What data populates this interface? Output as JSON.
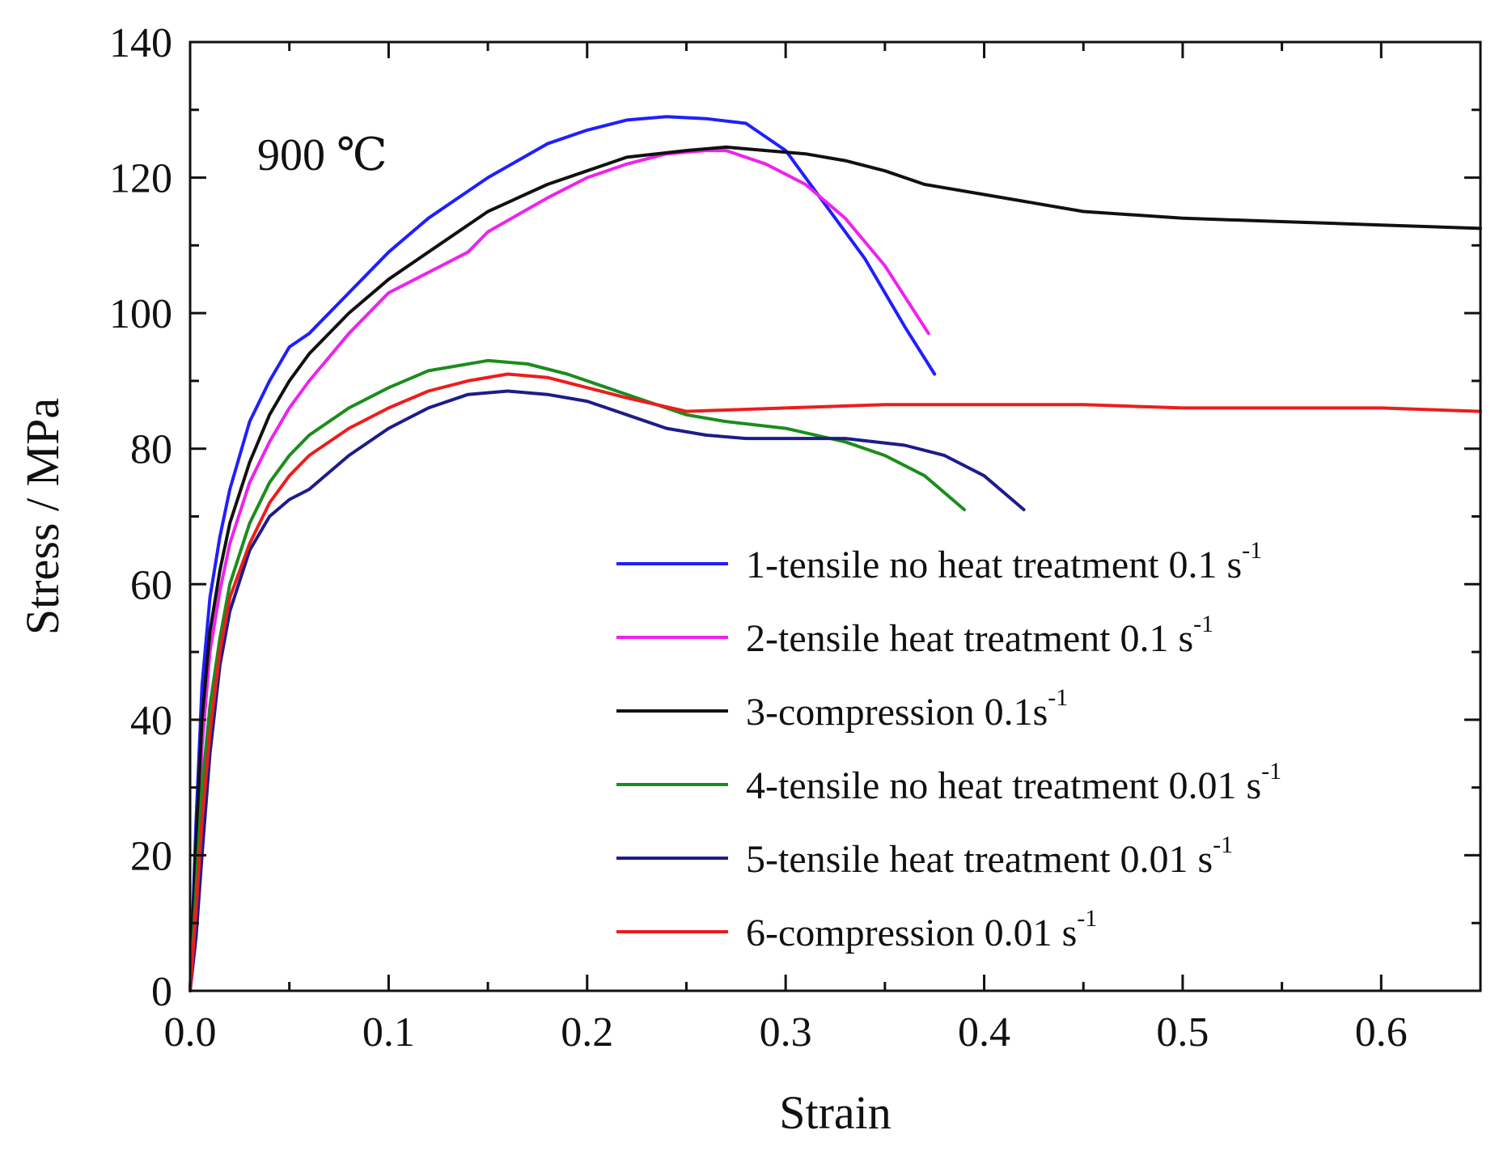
{
  "chart_data": {
    "type": "line",
    "title": "",
    "annotation": "900 ℃",
    "xlabel": "Strain",
    "ylabel": "Stress / MPa",
    "xlim": [
      0.0,
      0.65
    ],
    "ylim": [
      0,
      140
    ],
    "xticks": [
      0.0,
      0.1,
      0.2,
      0.3,
      0.4,
      0.5,
      0.6
    ],
    "xtick_labels": [
      "0.0",
      "0.1",
      "0.2",
      "0.3",
      "0.4",
      "0.5",
      "0.6"
    ],
    "yticks": [
      0,
      20,
      40,
      60,
      80,
      100,
      120,
      140
    ],
    "ytick_labels": [
      "0",
      "20",
      "40",
      "60",
      "80",
      "100",
      "120",
      "140"
    ],
    "grid": false,
    "legend_position": "lower-right",
    "series": [
      {
        "name": "1-tensile no heat treatment 0.1 s",
        "name_main": "1-tensile no heat treatment 0.1 s",
        "name_sup": "-1",
        "color": "#1f1fff",
        "x": [
          0,
          0.003,
          0.006,
          0.01,
          0.015,
          0.02,
          0.03,
          0.04,
          0.05,
          0.06,
          0.08,
          0.1,
          0.12,
          0.15,
          0.18,
          0.2,
          0.22,
          0.24,
          0.26,
          0.28,
          0.3,
          0.32,
          0.34,
          0.36,
          0.375
        ],
        "y": [
          0,
          25,
          45,
          58,
          67,
          74,
          84,
          90,
          95,
          97,
          103,
          109,
          114,
          120,
          125,
          127,
          128.5,
          129,
          128.7,
          128,
          124,
          116,
          108,
          98,
          91
        ]
      },
      {
        "name": "2-tensile heat treatment 0.1 s",
        "name_main": "2-tensile heat treatment 0.1 s",
        "name_sup": "-1",
        "color": "#ee22ee",
        "x": [
          0,
          0.003,
          0.006,
          0.01,
          0.015,
          0.02,
          0.03,
          0.04,
          0.05,
          0.06,
          0.08,
          0.1,
          0.12,
          0.14,
          0.15,
          0.18,
          0.2,
          0.22,
          0.24,
          0.26,
          0.27,
          0.29,
          0.31,
          0.33,
          0.35,
          0.372
        ],
        "y": [
          0,
          18,
          36,
          50,
          59,
          66,
          75,
          81,
          86,
          90,
          97,
          103,
          106,
          109,
          112,
          117,
          120,
          122,
          123.5,
          124,
          124,
          122,
          119,
          114,
          107,
          97
        ]
      },
      {
        "name": "3-compression 0.1s",
        "name_main": "3-compression 0.1s",
        "name_sup": "-1",
        "color": "#111111",
        "x": [
          0,
          0.003,
          0.006,
          0.01,
          0.015,
          0.02,
          0.03,
          0.04,
          0.05,
          0.06,
          0.08,
          0.1,
          0.12,
          0.15,
          0.18,
          0.2,
          0.22,
          0.25,
          0.27,
          0.29,
          0.31,
          0.33,
          0.35,
          0.37,
          0.4,
          0.45,
          0.5,
          0.55,
          0.6,
          0.65
        ],
        "y": [
          0,
          22,
          40,
          53,
          62,
          69,
          78,
          85,
          90,
          94,
          100,
          105,
          109,
          115,
          119,
          121,
          123,
          124,
          124.5,
          124,
          123.5,
          122.5,
          121,
          119,
          117.5,
          115,
          114,
          113.5,
          113,
          112.5
        ]
      },
      {
        "name": "4-tensile no heat treatment 0.01 s",
        "name_main": "4-tensile no heat treatment 0.01 s",
        "name_sup": "-1",
        "color": "#1c8c1c",
        "x": [
          0,
          0.003,
          0.006,
          0.01,
          0.015,
          0.02,
          0.03,
          0.04,
          0.05,
          0.06,
          0.08,
          0.1,
          0.12,
          0.15,
          0.17,
          0.19,
          0.21,
          0.23,
          0.25,
          0.27,
          0.3,
          0.33,
          0.35,
          0.37,
          0.39
        ],
        "y": [
          0,
          15,
          30,
          42,
          52,
          60,
          69,
          75,
          79,
          82,
          86,
          89,
          91.5,
          93,
          92.5,
          91,
          89,
          87,
          85,
          84,
          83,
          81,
          79,
          76,
          71
        ]
      },
      {
        "name": "5-tensile heat treatment 0.01 s",
        "name_main": "5-tensile heat treatment 0.01 s",
        "name_sup": "-1",
        "color": "#1c1c8c",
        "x": [
          0,
          0.003,
          0.006,
          0.01,
          0.015,
          0.02,
          0.03,
          0.04,
          0.05,
          0.06,
          0.08,
          0.1,
          0.12,
          0.14,
          0.16,
          0.18,
          0.2,
          0.22,
          0.24,
          0.26,
          0.28,
          0.3,
          0.33,
          0.36,
          0.38,
          0.4,
          0.42
        ],
        "y": [
          0,
          8,
          20,
          35,
          48,
          56,
          65,
          70,
          72.5,
          74,
          79,
          83,
          86,
          88,
          88.5,
          88,
          87,
          85,
          83,
          82,
          81.5,
          81.5,
          81.5,
          80.5,
          79,
          76,
          71
        ]
      },
      {
        "name": "6-compression 0.01 s",
        "name_main": "6-compression 0.01 s",
        "name_sup": "-1",
        "color": "#ee1c1c",
        "x": [
          0,
          0.003,
          0.006,
          0.01,
          0.015,
          0.02,
          0.03,
          0.04,
          0.05,
          0.06,
          0.08,
          0.1,
          0.12,
          0.14,
          0.16,
          0.18,
          0.2,
          0.22,
          0.25,
          0.3,
          0.35,
          0.4,
          0.45,
          0.5,
          0.55,
          0.6,
          0.65
        ],
        "y": [
          0,
          12,
          25,
          38,
          50,
          58,
          66,
          72,
          76,
          79,
          83,
          86,
          88.5,
          90,
          91,
          90.5,
          89,
          87.5,
          85.5,
          86,
          86.5,
          86.5,
          86.5,
          86,
          86,
          86,
          85.5
        ]
      }
    ]
  }
}
